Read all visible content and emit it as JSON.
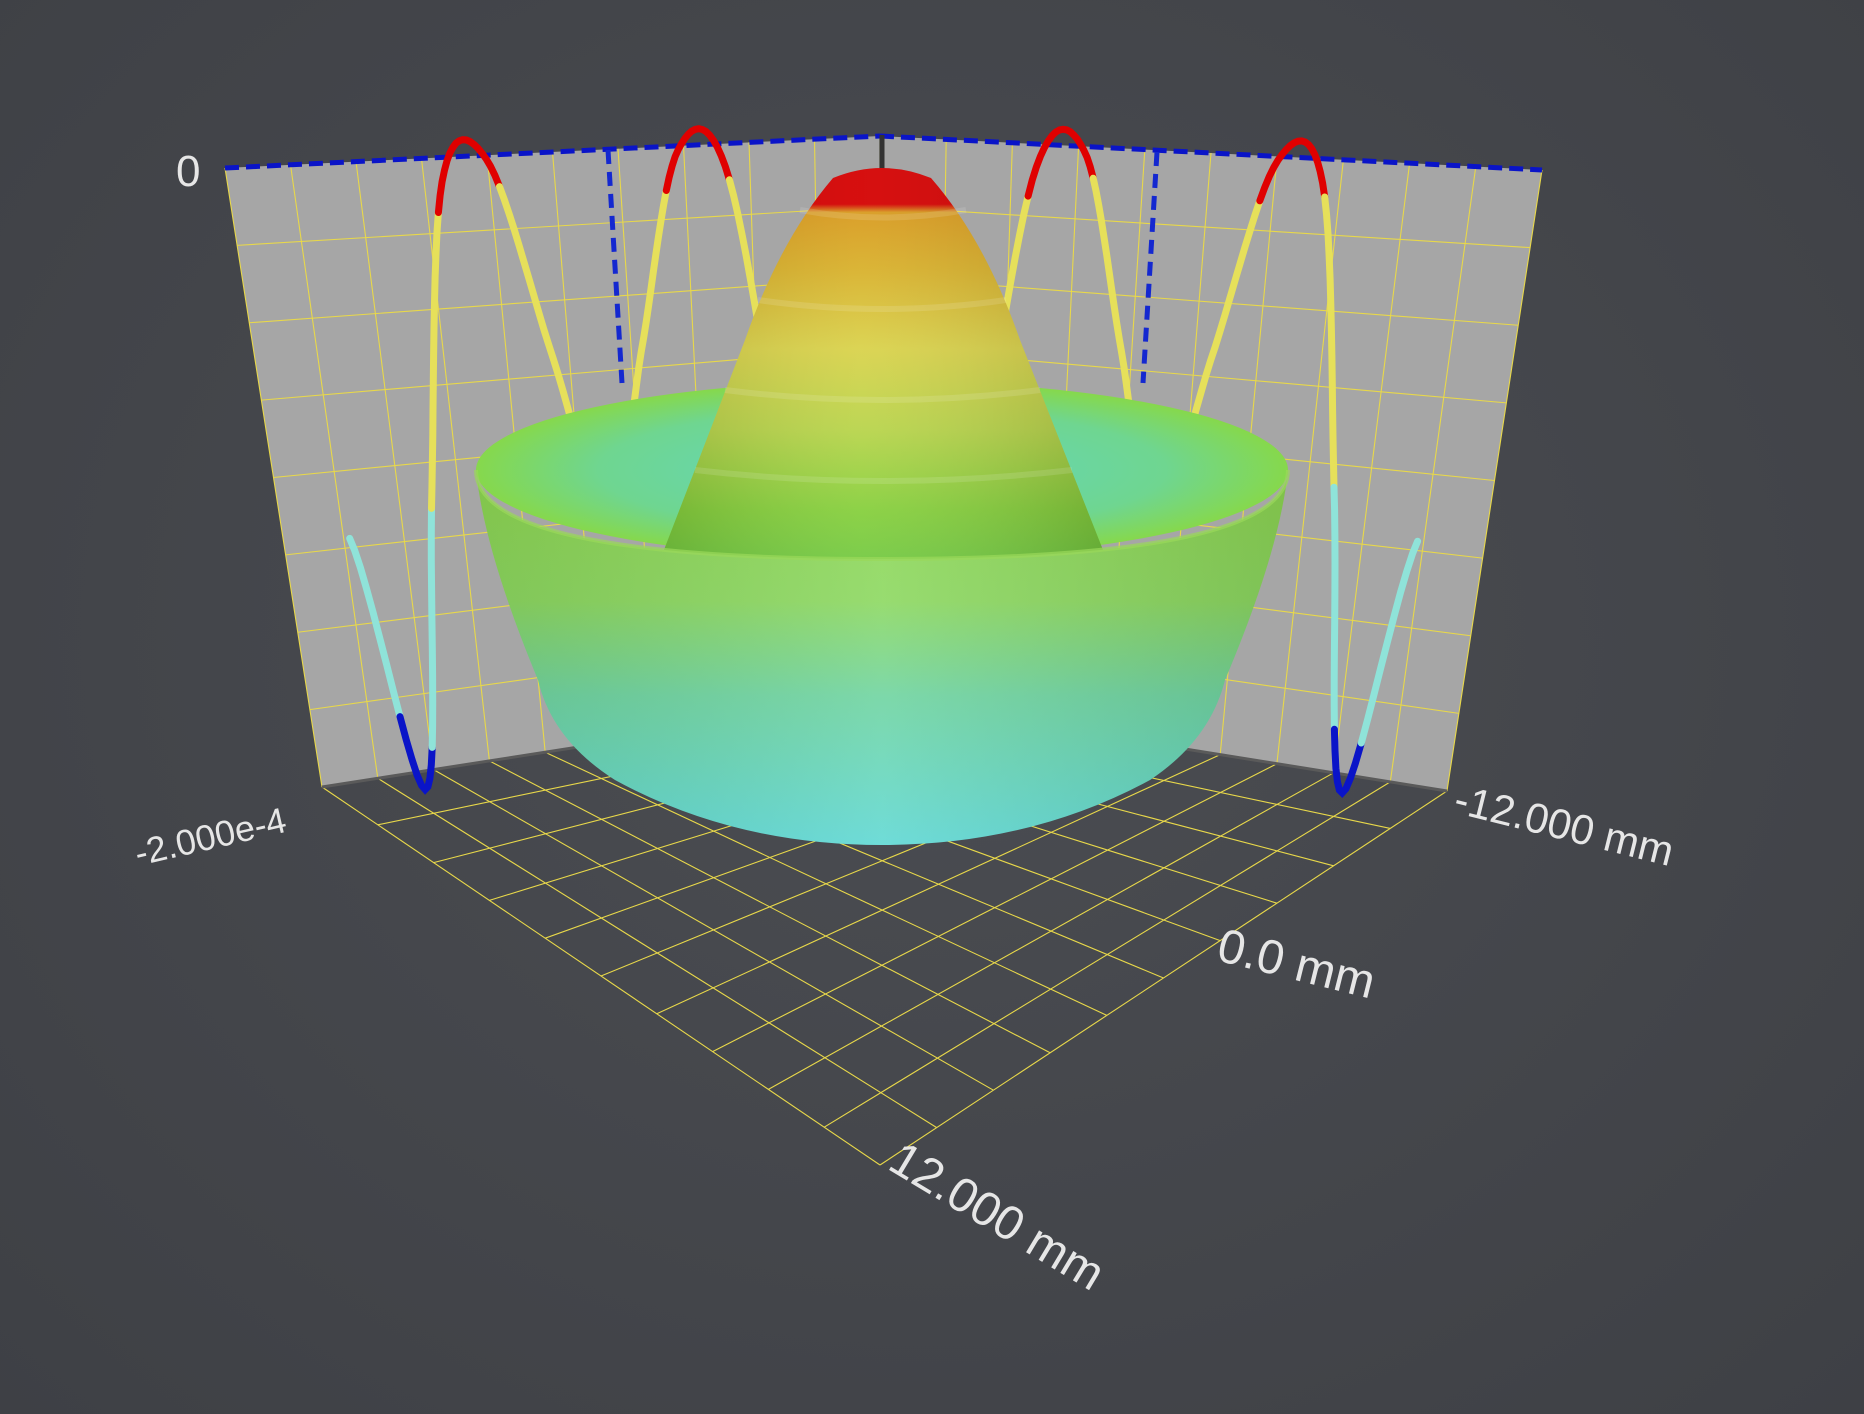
{
  "chart_data": {
    "type": "surface3d",
    "title": "",
    "z_axis": {
      "tick_labels": [
        "0",
        "-2.000e-4"
      ],
      "range": [
        -0.0002,
        0
      ]
    },
    "x_axis": {
      "tick_labels": [
        "12.000 mm",
        "0.0 mm"
      ],
      "range_mm": [
        -12,
        12
      ]
    },
    "y_axis": {
      "tick_labels": [
        "-12.000 mm"
      ],
      "range_mm": [
        -12,
        12
      ]
    },
    "surface": {
      "shape": "radially symmetric sombrero (central peak, outer ring rim)"
    },
    "profile_curves": {
      "description": "cross-section profile projected on both back walls",
      "points": [
        {
          "r": -12,
          "z": -0.000105
        },
        {
          "r": -10,
          "z": -0.000175
        },
        {
          "r": -8,
          "z": -9.5e-05
        },
        {
          "r": -6,
          "z": -1e-05
        },
        {
          "r": -4,
          "z": -5e-06
        },
        {
          "r": -2,
          "z": -6e-05
        },
        {
          "r": 0,
          "z": -0.00011
        },
        {
          "r": 2,
          "z": -6e-05
        },
        {
          "r": 4,
          "z": -5e-06
        },
        {
          "r": 6,
          "z": -1e-05
        },
        {
          "r": 8,
          "z": -9.5e-05
        },
        {
          "r": 10,
          "z": -0.000175
        },
        {
          "r": 12,
          "z": -0.000105
        }
      ]
    },
    "colors": {
      "high": "#e00000",
      "upper": "#e6e05a",
      "lower": "#8fe3d9",
      "low": "#0a14c8",
      "grid": "#e8d84a",
      "wall": "#a6a6a6",
      "marker_line": "#1428d0"
    }
  }
}
